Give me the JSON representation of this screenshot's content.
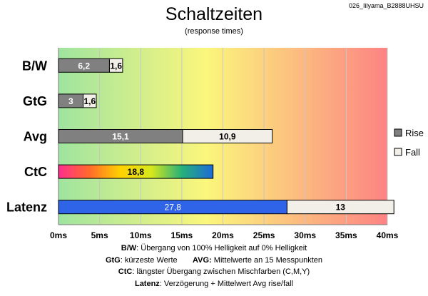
{
  "page": {
    "corner_id": "026_Iilyama_B2888UHSU"
  },
  "chart_data": {
    "type": "bar",
    "orientation": "horizontal",
    "stacked": true,
    "title": "Schaltzeiten",
    "subtitle": "(response times)",
    "categories": [
      "B/W",
      "GtG",
      "Avg",
      "CtC",
      "Latenz"
    ],
    "series": [
      {
        "name": "Rise",
        "values": [
          6.2,
          3,
          15.1,
          18.8,
          27.8
        ]
      },
      {
        "name": "Fall",
        "values": [
          1.6,
          1.6,
          10.9,
          null,
          13
        ]
      }
    ],
    "value_labels": [
      [
        "6,2",
        "1,6"
      ],
      [
        "3",
        "1,6"
      ],
      [
        "15,1",
        "10,9"
      ],
      [
        "18,8",
        ""
      ],
      [
        "27,8",
        "13"
      ]
    ],
    "bar_styles": [
      "gray",
      "gray",
      "gray",
      "rainbow",
      "blue"
    ],
    "xlim": [
      0,
      40
    ],
    "x_ticks": [
      0,
      5,
      10,
      15,
      20,
      25,
      30,
      35,
      40
    ],
    "x_tick_labels": [
      "0ms",
      "5ms",
      "10ms",
      "15ms",
      "20ms",
      "25ms",
      "30ms",
      "35ms",
      "40ms"
    ],
    "background": "green-yellow-red gradient",
    "grid": true,
    "legend_position": "right",
    "colors": {
      "rise": "#808080",
      "fall": "#f2efe9",
      "latenz_rise": "#2f63e8",
      "grid": "#c6c6c6",
      "bg_start": "#9fe4a0",
      "bg_mid": "#fbf67c",
      "bg_end": "#fd8383",
      "rainbow": [
        "#ff2d8f",
        "#ff6a2a",
        "#ffd200",
        "#d6e81c",
        "#24b07a",
        "#1e6bd6"
      ]
    }
  },
  "footnotes": [
    {
      "term": "B/W",
      "text": ":  Übergang von 100% Helligkeit auf 0% Helligkeit"
    },
    {
      "term": "GtG",
      "text": ": kürzeste  Werte",
      "term2": "AVG:",
      "text2": " Mittelwerte  an 15 Messpunkten"
    },
    {
      "term": "CtC",
      "text": ": längster Übergang  zwischen Mischfarben  (C,M,Y)"
    },
    {
      "term": "Latenz",
      "text": ": Verzögerung  + Mittelwert  Avg rise/fall"
    }
  ]
}
